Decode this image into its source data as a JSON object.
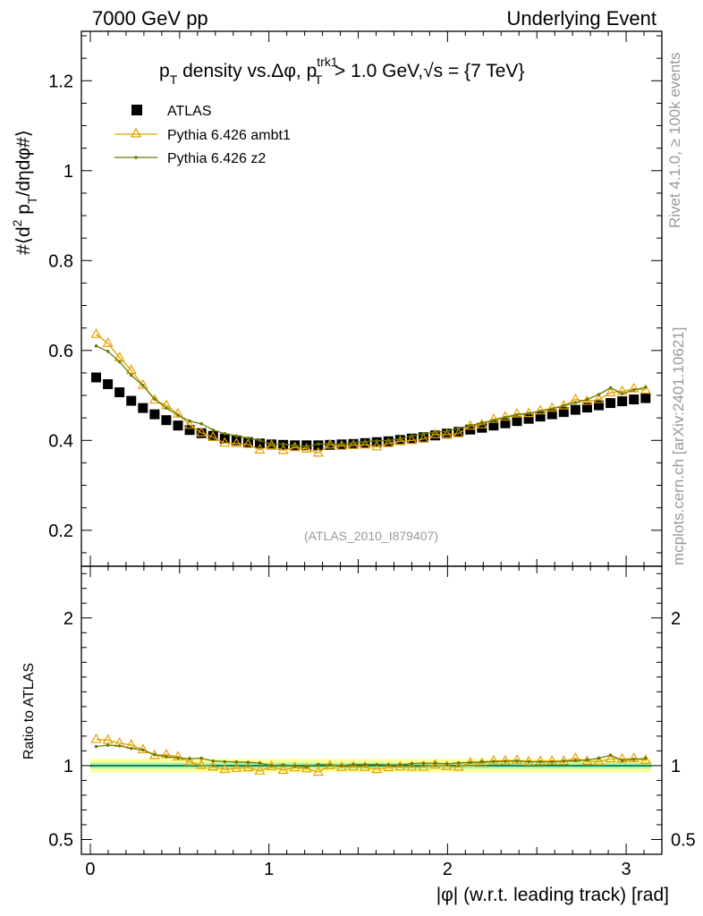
{
  "header": {
    "left": "7000 GeV pp",
    "right": "Underlying Event"
  },
  "side_labels": {
    "rivet": "Rivet 4.1.0, ≥ 100k events",
    "mcplots": "mcplots.cern.ch [arXiv:2401.10621]"
  },
  "chart_data": {
    "type": "line",
    "title": "pT density vs.Δφ, pTtrk1 > 1.0 GeV,√s = {7 TeV}",
    "title_parts": {
      "pre": "p",
      "sub_T": "T",
      "mid": " density vs.Δφ, p",
      "sup": "trk1",
      "post": " > 1.0 GeV,",
      "root": "√",
      "s_eq": "s = {7 TeV}"
    },
    "ylabel": "#⟨d² pT/dηdφ#⟩",
    "ylabel_parts": {
      "a": "#⟨d",
      "b": "2",
      "c": " p",
      "d": "T",
      "e": "/dηdφ#⟩"
    },
    "xlabel": "|φ| (w.r.t. leading track) [rad]",
    "ratio_ylabel": "Ratio to ATLAS",
    "watermark": "(ATLAS_2010_I879407)",
    "xlim": [
      -0.05,
      3.2
    ],
    "ylim": [
      0.12,
      1.31
    ],
    "ratio_ylim": [
      0.4,
      2.35
    ],
    "x_ticks": [
      "0",
      "1",
      "2",
      "3"
    ],
    "y_ticks": [
      "0.2",
      "0.4",
      "0.6",
      "0.8",
      "1",
      "1.2"
    ],
    "ratio_ticks": [
      "0.5",
      "1",
      "2"
    ],
    "legend": [
      "ATLAS",
      "Pythia 6.426 ambt1",
      "Pythia 6.426 z2"
    ],
    "legend_position": "top-left",
    "x": [
      0.0327,
      0.0982,
      0.1636,
      0.2291,
      0.2945,
      0.36,
      0.4254,
      0.4909,
      0.5563,
      0.6218,
      0.6872,
      0.7527,
      0.8181,
      0.8836,
      0.949,
      1.0145,
      1.0799,
      1.1454,
      1.2108,
      1.2763,
      1.3417,
      1.4072,
      1.4726,
      1.5381,
      1.6035,
      1.669,
      1.7344,
      1.7999,
      1.8653,
      1.9308,
      1.9962,
      2.0617,
      2.1271,
      2.1926,
      2.258,
      2.3235,
      2.3889,
      2.4544,
      2.5198,
      2.5853,
      2.6507,
      2.7162,
      2.7816,
      2.8471,
      2.9125,
      2.978,
      3.0434,
      3.1089
    ],
    "series": [
      {
        "name": "ATLAS",
        "color": "#000000",
        "marker": "square",
        "values": [
          0.54,
          0.525,
          0.507,
          0.488,
          0.472,
          0.458,
          0.445,
          0.433,
          0.423,
          0.416,
          0.41,
          0.404,
          0.4,
          0.396,
          0.393,
          0.391,
          0.39,
          0.389,
          0.389,
          0.389,
          0.39,
          0.391,
          0.392,
          0.394,
          0.396,
          0.398,
          0.401,
          0.404,
          0.407,
          0.411,
          0.415,
          0.419,
          0.424,
          0.428,
          0.433,
          0.438,
          0.443,
          0.448,
          0.453,
          0.458,
          0.463,
          0.468,
          0.473,
          0.478,
          0.483,
          0.487,
          0.491,
          0.494
        ]
      },
      {
        "name": "Pythia 6.426 ambt1",
        "color": "#e5a000",
        "marker": "triangle-open",
        "values": [
          0.636,
          0.616,
          0.584,
          0.556,
          0.523,
          0.49,
          0.478,
          0.459,
          0.434,
          0.417,
          0.407,
          0.394,
          0.393,
          0.391,
          0.379,
          0.389,
          0.378,
          0.384,
          0.381,
          0.372,
          0.39,
          0.387,
          0.389,
          0.39,
          0.386,
          0.393,
          0.398,
          0.4,
          0.403,
          0.413,
          0.413,
          0.415,
          0.432,
          0.435,
          0.447,
          0.452,
          0.459,
          0.46,
          0.466,
          0.472,
          0.477,
          0.491,
          0.487,
          0.491,
          0.506,
          0.509,
          0.515,
          0.512
        ]
      },
      {
        "name": "Pythia 6.426 z2",
        "color": "#6b7a00",
        "marker": "dot",
        "values": [
          0.61,
          0.598,
          0.575,
          0.545,
          0.522,
          0.492,
          0.472,
          0.456,
          0.443,
          0.437,
          0.423,
          0.415,
          0.41,
          0.405,
          0.4,
          0.391,
          0.392,
          0.388,
          0.386,
          0.392,
          0.392,
          0.391,
          0.395,
          0.397,
          0.399,
          0.4,
          0.403,
          0.41,
          0.414,
          0.418,
          0.42,
          0.427,
          0.433,
          0.439,
          0.445,
          0.451,
          0.457,
          0.46,
          0.465,
          0.47,
          0.477,
          0.484,
          0.491,
          0.502,
          0.517,
          0.504,
          0.512,
          0.518
        ]
      }
    ],
    "ratio_band": {
      "inner": [
        0.98,
        1.02
      ],
      "outer": [
        0.955,
        1.045
      ],
      "inner_color": "#a6f5b4",
      "outer_color": "#ffff99"
    },
    "ratio_line_color": "#006b3c"
  }
}
